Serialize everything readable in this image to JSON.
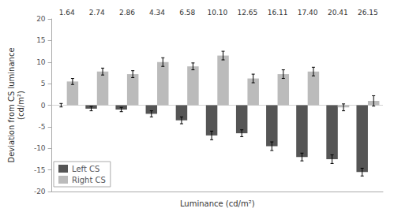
{
  "chart_data": {
    "type": "bar",
    "categories": [
      "1.64",
      "2.74",
      "2.86",
      "4.34",
      "6.58",
      "10.10",
      "12.65",
      "16.11",
      "17.40",
      "20.41",
      "26.15"
    ],
    "series": [
      {
        "name": "Left CS",
        "color": "#555555",
        "values": [
          0.0,
          -0.8,
          -1.0,
          -2.0,
          -3.5,
          -7.0,
          -6.5,
          -9.5,
          -12.0,
          -12.5,
          -15.5
        ],
        "errors": [
          0.4,
          0.5,
          0.5,
          0.7,
          0.8,
          1.0,
          0.8,
          1.0,
          0.9,
          1.0,
          0.9
        ]
      },
      {
        "name": "Right CS",
        "color": "#bbbbbb",
        "values": [
          5.5,
          7.8,
          7.2,
          10.0,
          9.0,
          11.5,
          6.2,
          7.2,
          7.8,
          -0.5,
          1.0
        ],
        "errors": [
          0.7,
          0.8,
          0.8,
          1.0,
          0.8,
          1.0,
          1.0,
          1.0,
          1.0,
          0.8,
          1.2
        ]
      }
    ],
    "ylabel": "Deviation from CS luminance\n(cd/m²)",
    "xlabel": "Luminance (cd/m²)",
    "ylim": [
      -20,
      20
    ],
    "yticks": [
      -20,
      -15,
      -10,
      -5,
      0,
      5,
      10,
      15,
      20
    ],
    "grid": false,
    "legend": "lower left"
  }
}
